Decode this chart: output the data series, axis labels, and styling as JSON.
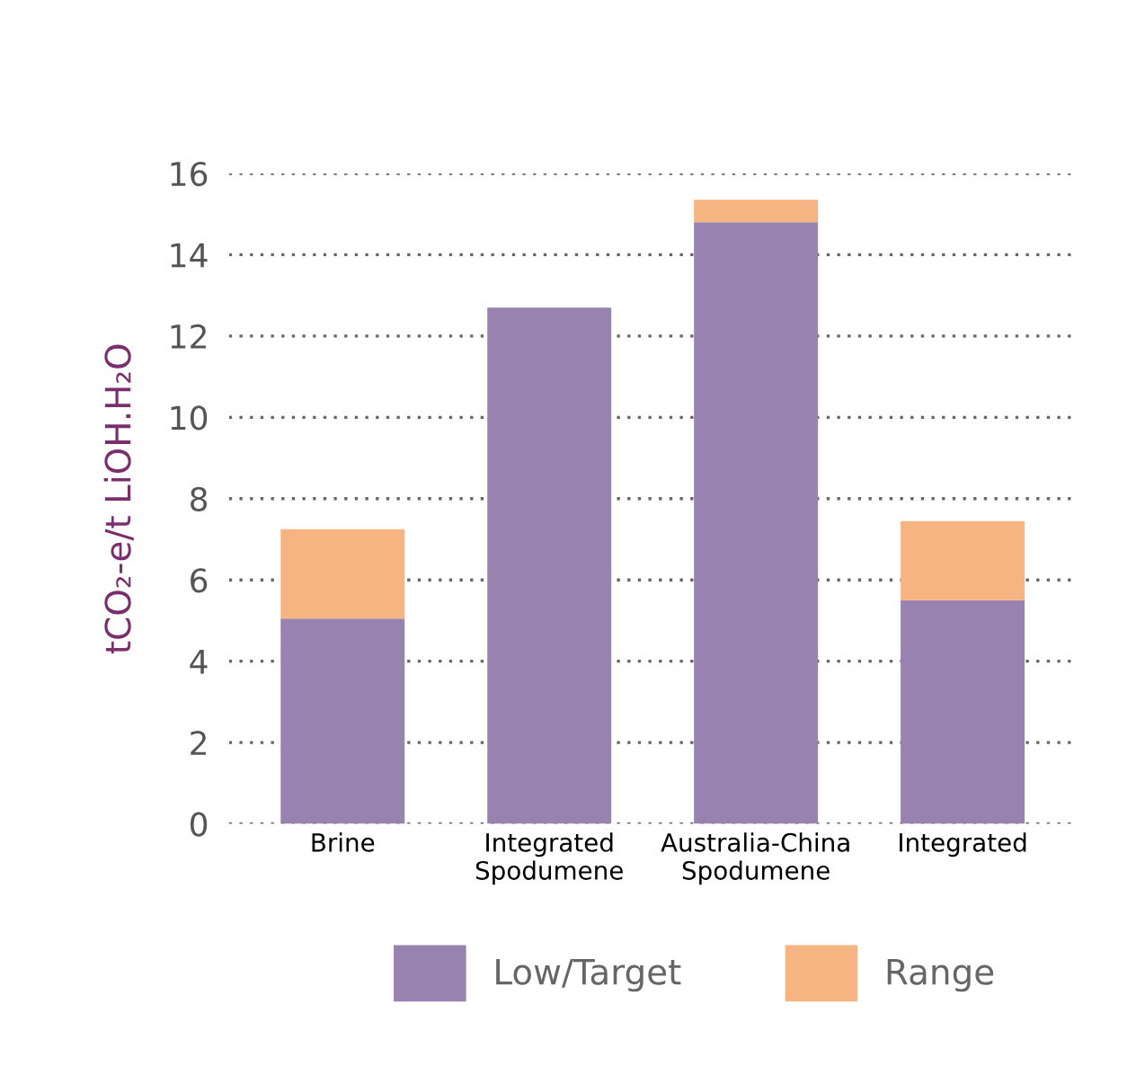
{
  "chart_data": {
    "type": "bar",
    "stacked": true,
    "ylabel": "tCO₂-e/t LiOH.H₂O",
    "categories": [
      "Brine",
      "Integrated\nSpodumene",
      "Australia-China\nSpodumene",
      "Integrated"
    ],
    "series": [
      {
        "name": "Low/Target",
        "color": "#9782b0",
        "values": [
          5.05,
          12.7,
          14.8,
          5.5
        ]
      },
      {
        "name": "Range",
        "color": "#f6b482",
        "values": [
          2.2,
          null,
          0.55,
          1.95
        ]
      }
    ],
    "ylim": [
      0,
      16
    ],
    "yticks": [
      0,
      2,
      4,
      6,
      8,
      10,
      12,
      14,
      16
    ],
    "grid": "y",
    "legend": "bottom"
  }
}
